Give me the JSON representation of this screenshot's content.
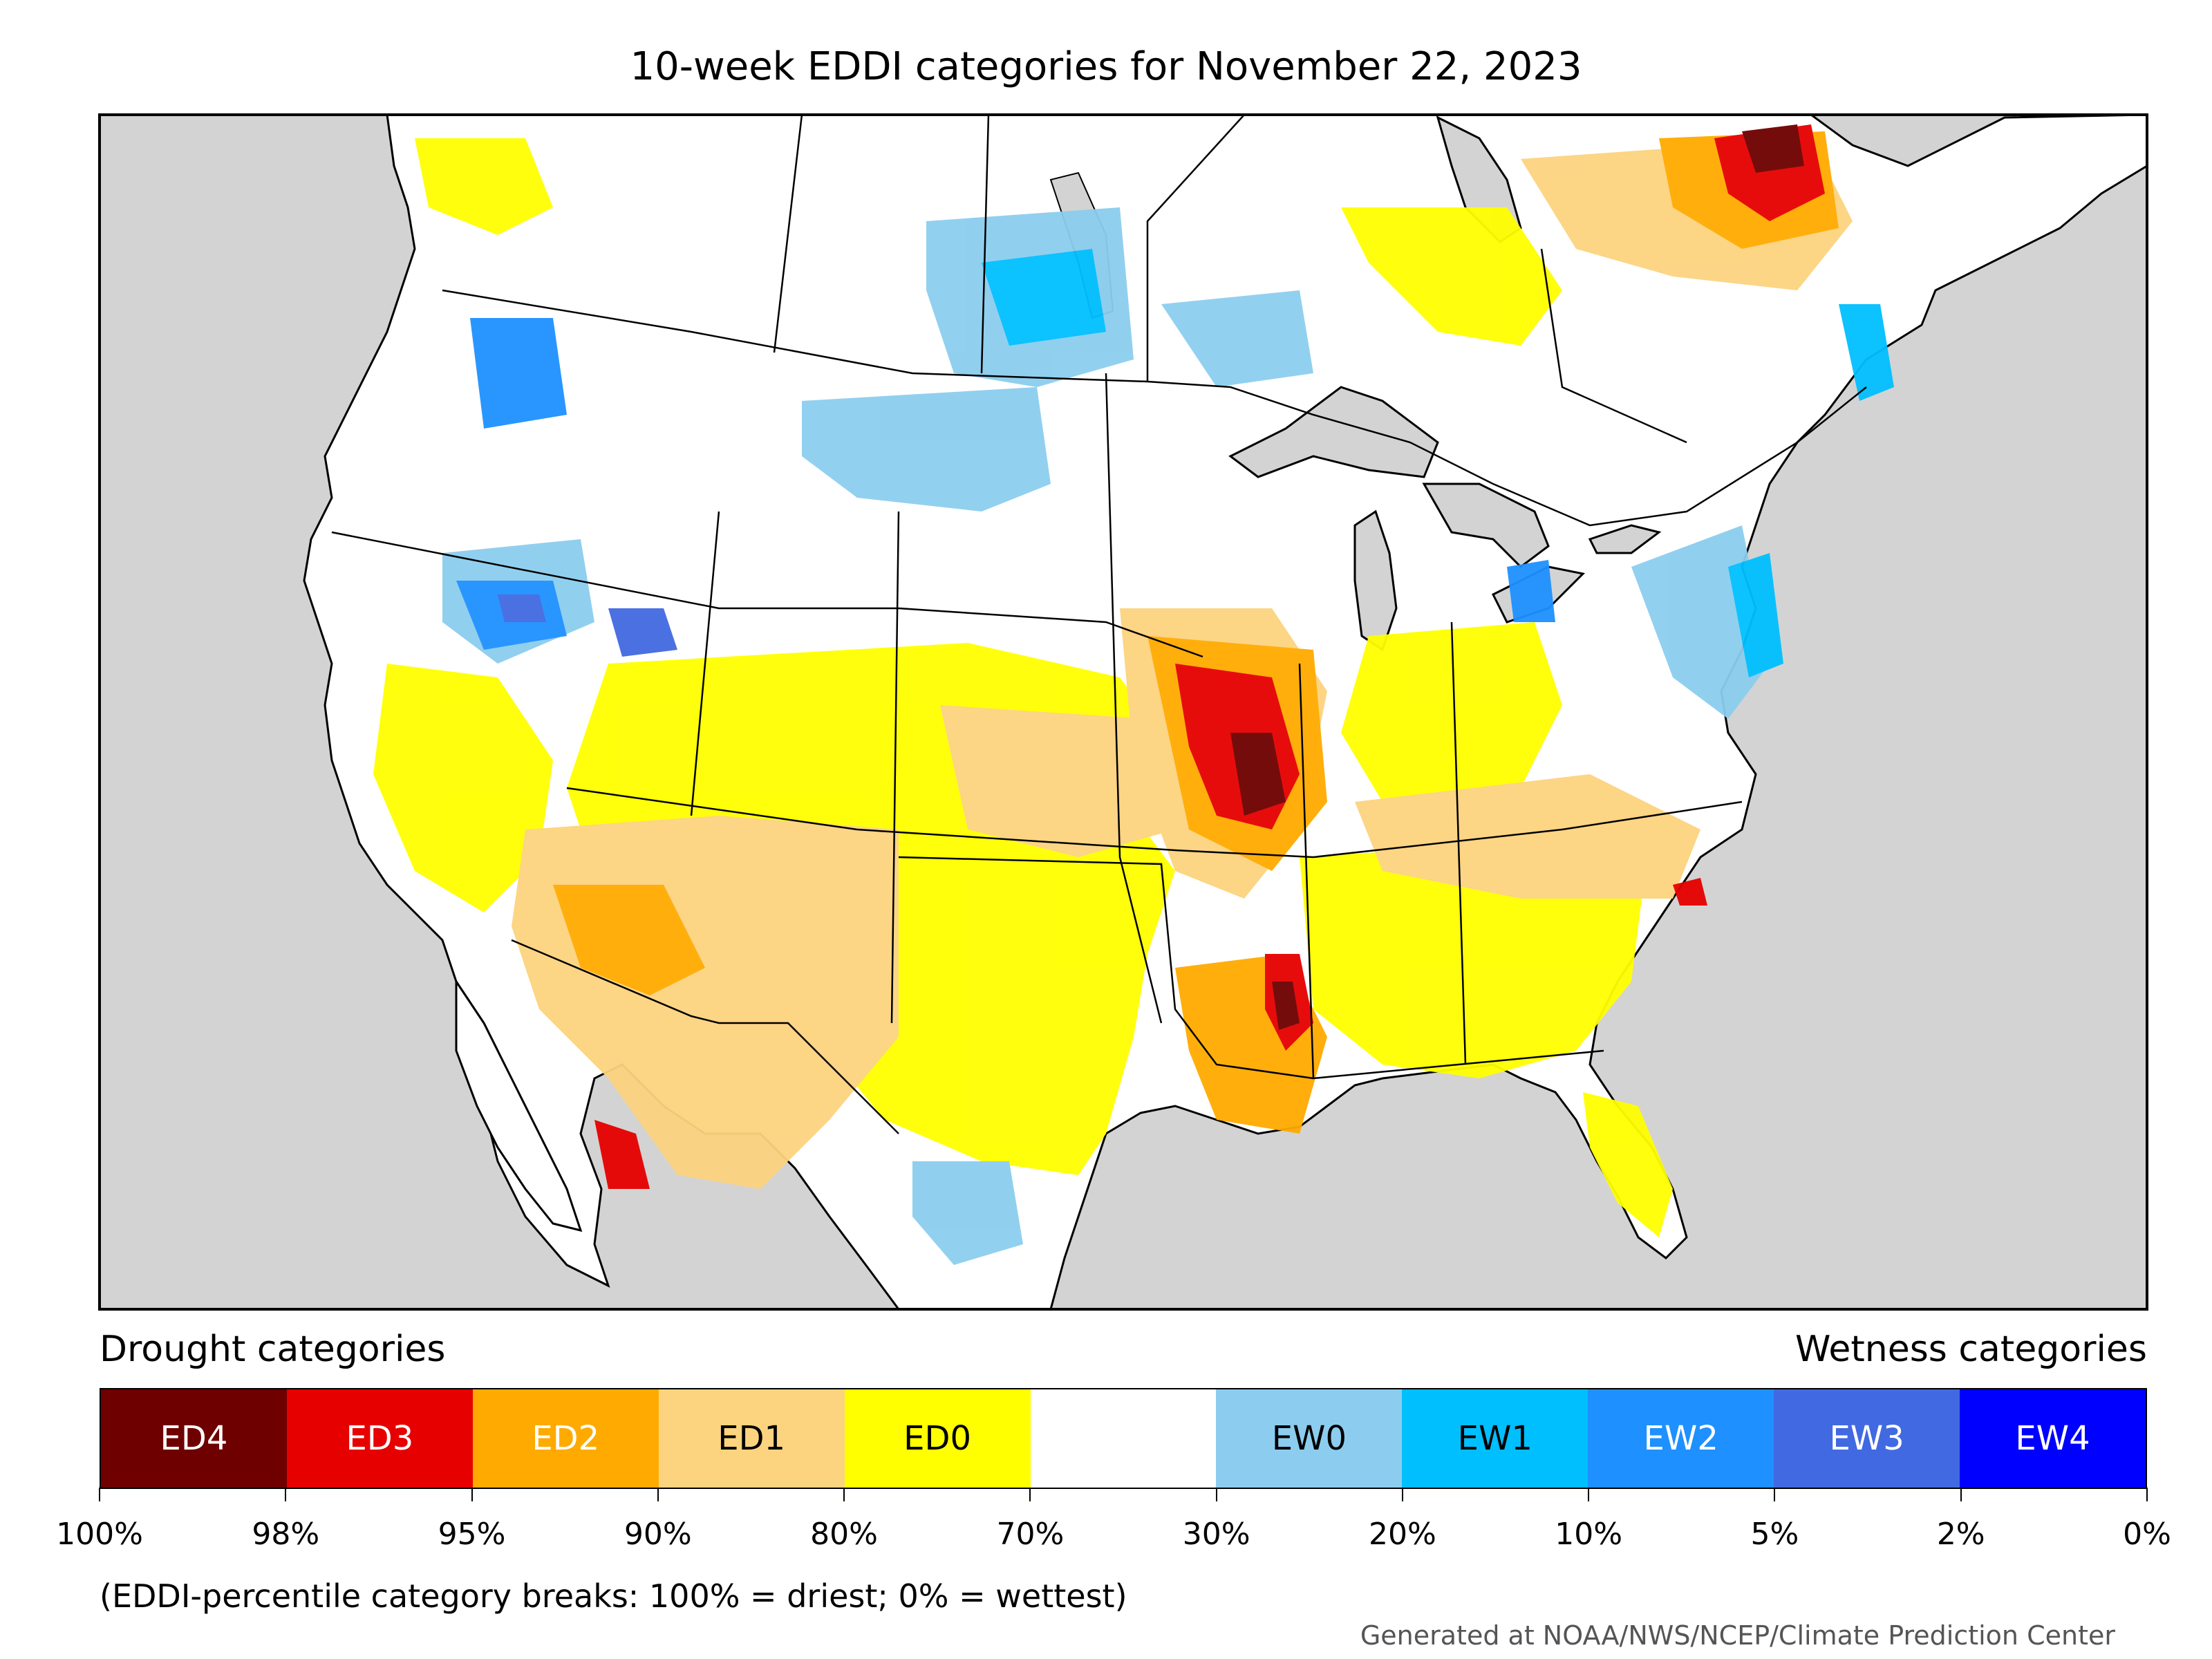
{
  "title": "10-week EDDI categories for November 22, 2023",
  "legend": {
    "drought_heading": "Drought categories",
    "wetness_heading": "Wetness categories",
    "categories": [
      {
        "label": "ED4",
        "color": "#6e0000",
        "text_color": "#ffffff"
      },
      {
        "label": "ED3",
        "color": "#e60000",
        "text_color": "#ffffff"
      },
      {
        "label": "ED2",
        "color": "#ffaa00",
        "text_color": "#ffffff"
      },
      {
        "label": "ED1",
        "color": "#fcd37f",
        "text_color": "#000000"
      },
      {
        "label": "ED0",
        "color": "#ffff00",
        "text_color": "#000000"
      },
      {
        "label": "",
        "color": "#ffffff",
        "text_color": "#000000"
      },
      {
        "label": "EW0",
        "color": "#8ccdef",
        "text_color": "#000000"
      },
      {
        "label": "EW1",
        "color": "#00bfff",
        "text_color": "#000000"
      },
      {
        "label": "EW2",
        "color": "#1e90ff",
        "text_color": "#ffffff"
      },
      {
        "label": "EW3",
        "color": "#4169e1",
        "text_color": "#ffffff"
      },
      {
        "label": "EW4",
        "color": "#0000ff",
        "text_color": "#ffffff"
      }
    ],
    "tick_labels": [
      "100%",
      "98%",
      "95%",
      "90%",
      "80%",
      "70%",
      "30%",
      "20%",
      "10%",
      "5%",
      "2%",
      "0%"
    ]
  },
  "note": "(EDDI-percentile category breaks: 100% = driest; 0% = wettest)",
  "credit": "Generated at NOAA/NWS/NCEP/Climate Prediction Center",
  "colors": {
    "ocean": "#d3d3d3",
    "land": "#ffffff",
    "border": "#000000"
  }
}
